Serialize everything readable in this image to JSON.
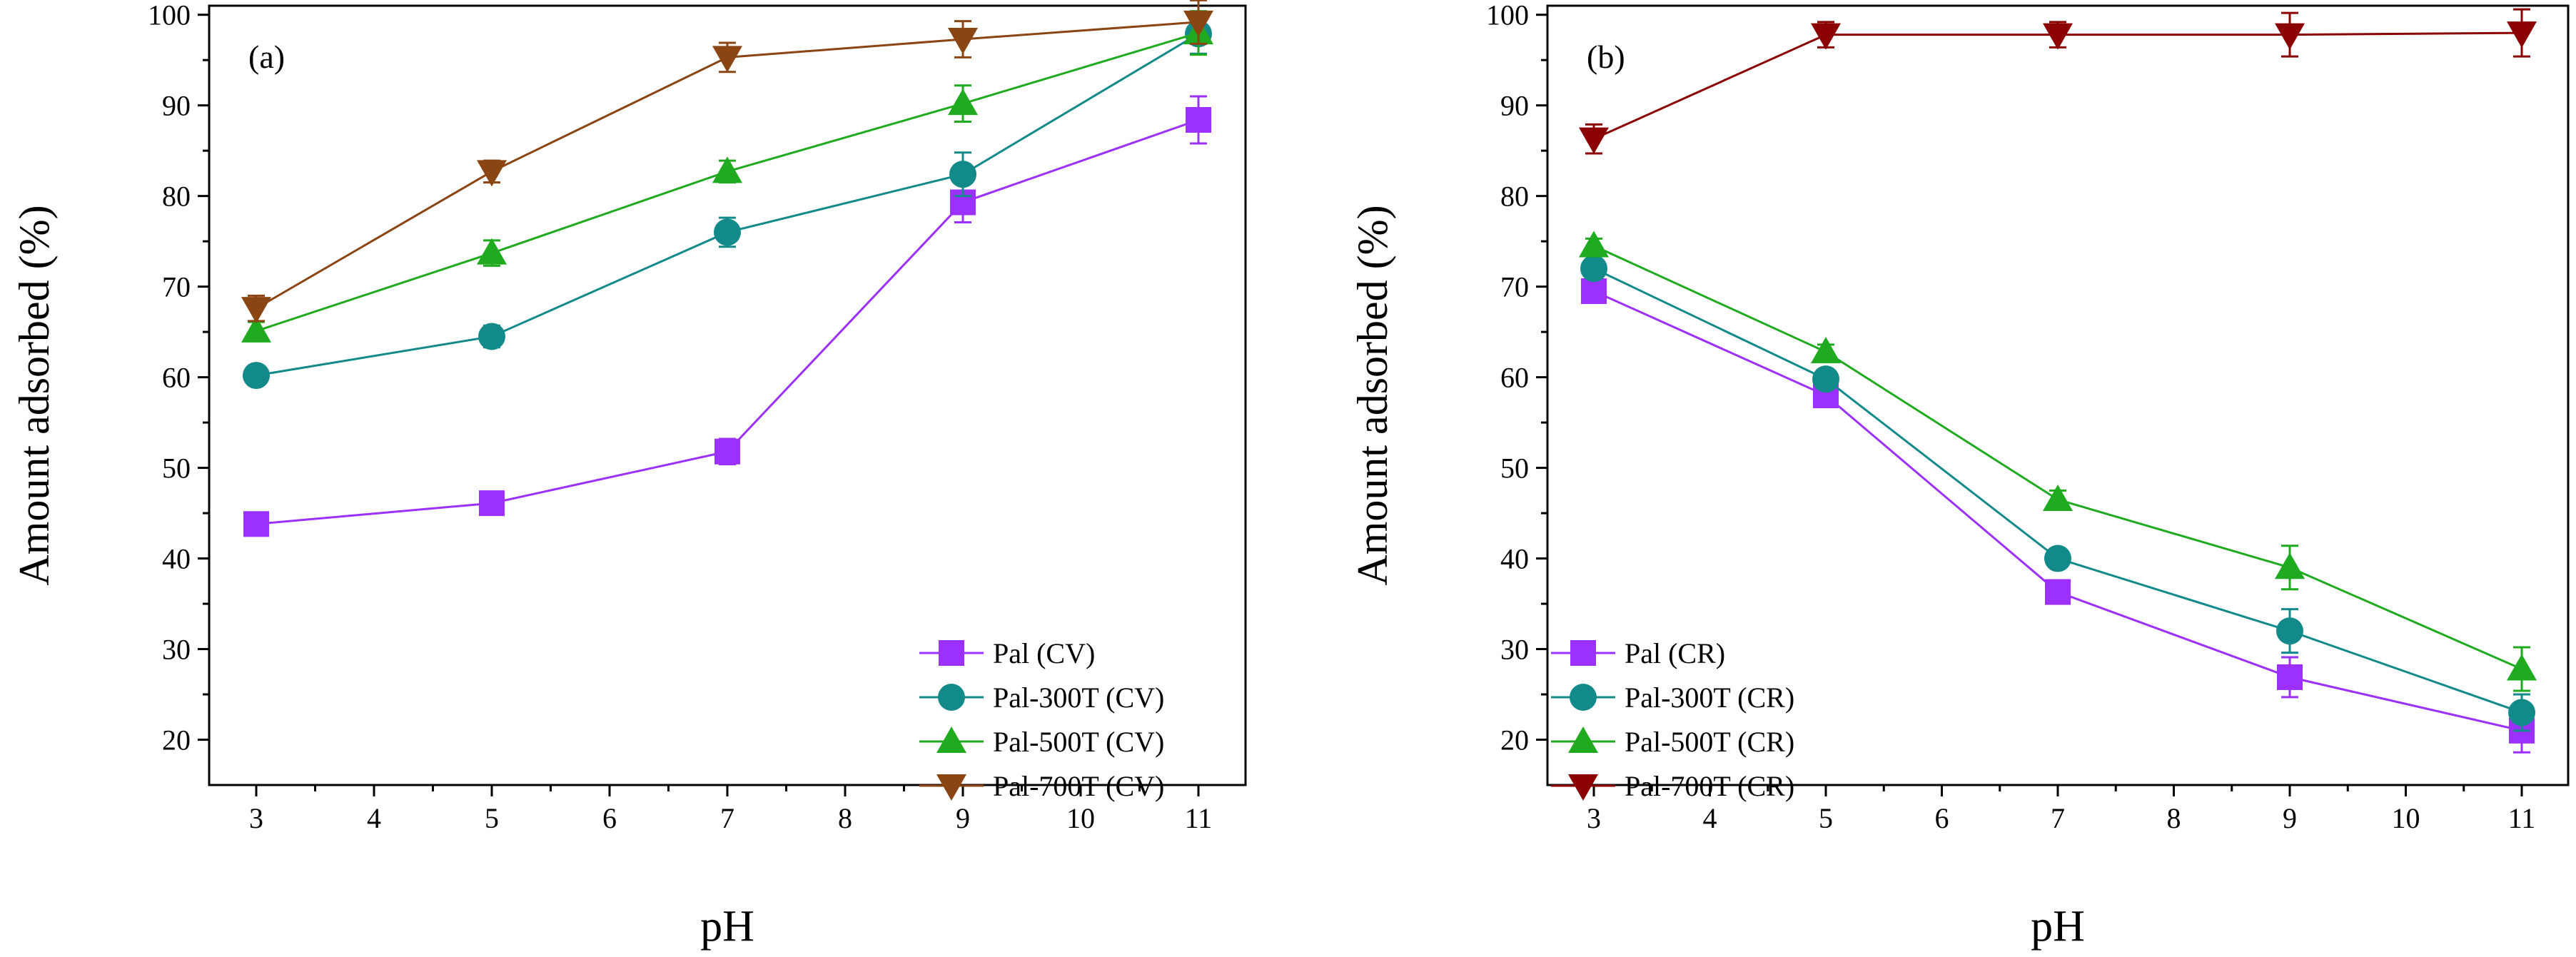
{
  "chart_data": [
    {
      "type": "line",
      "panel_label": "(a)",
      "xlabel": "pH",
      "ylabel": "Amount adsorbed (%)",
      "xlim": [
        2.6,
        11.4
      ],
      "ylim": [
        15,
        101
      ],
      "xticks": [
        "3",
        "4",
        "5",
        "6",
        "7",
        "8",
        "9",
        "10",
        "11"
      ],
      "yticks": [
        "20",
        "30",
        "40",
        "50",
        "60",
        "70",
        "80",
        "90",
        "100"
      ],
      "legend_position": "bottom-right",
      "x": [
        3,
        5,
        7,
        9,
        11
      ],
      "series": [
        {
          "name": "Pal (CV)",
          "marker": "square",
          "color": "#9b30ff",
          "values": [
            43.8,
            46.1,
            51.8,
            79.3,
            88.4
          ],
          "errors": [
            0.8,
            0.8,
            1.4,
            2.2,
            2.6
          ]
        },
        {
          "name": "Pal-300T (CV)",
          "marker": "circle",
          "color": "#138a8a",
          "values": [
            60.2,
            64.5,
            76.0,
            82.4,
            97.9
          ],
          "errors": [
            0.8,
            1.2,
            1.6,
            2.4,
            2.2
          ]
        },
        {
          "name": "Pal-500T (CV)",
          "marker": "triangle-up",
          "color": "#1faa1f",
          "values": [
            65.1,
            73.7,
            82.7,
            90.2,
            98.0
          ],
          "errors": [
            1.0,
            1.4,
            1.2,
            2.0,
            2.4
          ]
        },
        {
          "name": "Pal-700T (CV)",
          "marker": "triangle-down",
          "color": "#8b4513",
          "values": [
            67.6,
            82.7,
            95.3,
            97.3,
            99.2
          ],
          "errors": [
            1.4,
            1.2,
            1.6,
            2.0,
            2.4
          ]
        }
      ]
    },
    {
      "type": "line",
      "panel_label": "(b)",
      "xlabel": "pH",
      "ylabel": "Amount adsorbed (%)",
      "xlim": [
        2.6,
        11.4
      ],
      "ylim": [
        15,
        101
      ],
      "xticks": [
        "3",
        "4",
        "5",
        "6",
        "7",
        "8",
        "9",
        "10",
        "11"
      ],
      "yticks": [
        "20",
        "30",
        "40",
        "50",
        "60",
        "70",
        "80",
        "90",
        "100"
      ],
      "legend_position": "bottom-left",
      "x": [
        3,
        5,
        7,
        9,
        11
      ],
      "series": [
        {
          "name": "Pal (CR)",
          "marker": "square",
          "color": "#9b30ff",
          "values": [
            69.5,
            58.0,
            36.3,
            26.9,
            21.0
          ],
          "errors": [
            0.8,
            0.8,
            1.2,
            2.2,
            2.4
          ]
        },
        {
          "name": "Pal-300T (CR)",
          "marker": "circle",
          "color": "#138a8a",
          "values": [
            72.0,
            59.8,
            40.0,
            32.0,
            23.0
          ],
          "errors": [
            0.8,
            1.0,
            1.0,
            2.4,
            2.0
          ]
        },
        {
          "name": "Pal-500T (CR)",
          "marker": "triangle-up",
          "color": "#1faa1f",
          "values": [
            74.5,
            62.8,
            46.5,
            39.0,
            27.8
          ],
          "errors": [
            0.8,
            0.8,
            1.0,
            2.4,
            2.4
          ]
        },
        {
          "name": "Pal-700T (CR)",
          "marker": "triangle-down",
          "color": "#8b0000",
          "values": [
            86.3,
            97.8,
            97.8,
            97.8,
            98.0
          ],
          "errors": [
            1.6,
            1.4,
            1.4,
            2.4,
            2.6
          ]
        }
      ]
    }
  ]
}
